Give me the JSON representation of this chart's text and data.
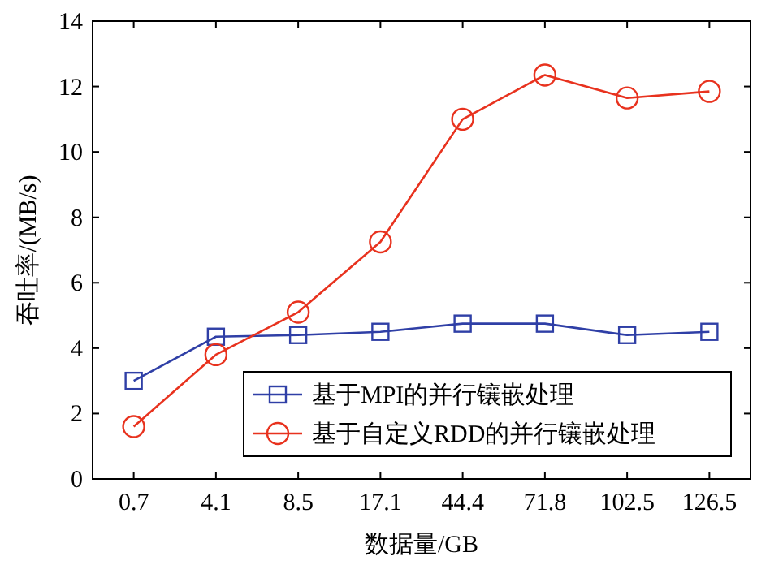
{
  "chart_data": {
    "type": "line",
    "xlabel": "数据量/GB",
    "ylabel": "吞吐率/(MB/s)",
    "categories": [
      "0.7",
      "4.1",
      "8.5",
      "17.1",
      "44.4",
      "71.8",
      "102.5",
      "126.5"
    ],
    "ylim": [
      0,
      14
    ],
    "yticks": [
      0,
      2,
      4,
      6,
      8,
      10,
      12,
      14
    ],
    "legend": "bottom right",
    "line_style": "solid",
    "series": [
      {
        "name": "基于MPI的并行镶嵌处理",
        "color": "#2f3fa6",
        "marker": "square",
        "values": [
          3.0,
          4.35,
          4.4,
          4.5,
          4.75,
          4.75,
          4.4,
          4.5
        ]
      },
      {
        "name": "基于自定义RDD的并行镶嵌处理",
        "color": "#e8321e",
        "marker": "circle",
        "values": [
          1.6,
          3.8,
          5.1,
          7.25,
          11.0,
          12.35,
          11.65,
          11.85
        ]
      }
    ]
  }
}
